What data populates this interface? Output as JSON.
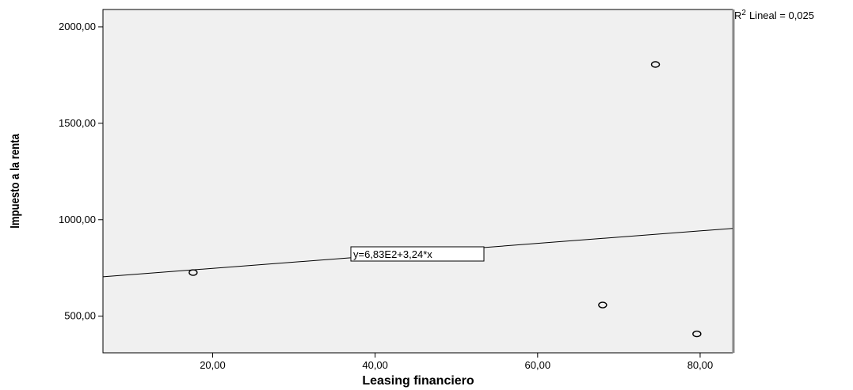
{
  "chart_data": {
    "type": "scatter",
    "title": "",
    "xlabel": "Leasing financiero",
    "ylabel": "Impuesto a la renta",
    "xlim": [
      6.5,
      84.0
    ],
    "ylim": [
      310.0,
      2090.0
    ],
    "xticks": [
      20,
      40,
      60,
      80
    ],
    "xtick_labels": [
      "20,00",
      "40,00",
      "60,00",
      "80,00"
    ],
    "yticks": [
      500,
      1000,
      1500,
      2000
    ],
    "ytick_labels": [
      "500,00",
      "1000,00",
      "1500,00",
      "2000,00"
    ],
    "points": [
      {
        "x": 17.6,
        "y": 726
      },
      {
        "x": 68.0,
        "y": 558
      },
      {
        "x": 74.5,
        "y": 1805
      },
      {
        "x": 79.6,
        "y": 408
      }
    ],
    "fit": {
      "intercept": 683,
      "slope": 3.24
    },
    "fit_label": "y=6,83E2+3,24*x",
    "r2_label": {
      "prefix": "R",
      "sup": "2",
      "text": "Lineal = 0,025"
    },
    "grid": false,
    "colors": {
      "plot_bg": "#f0f0f0",
      "axis": "#000000",
      "marker_edge": "#000000"
    }
  }
}
